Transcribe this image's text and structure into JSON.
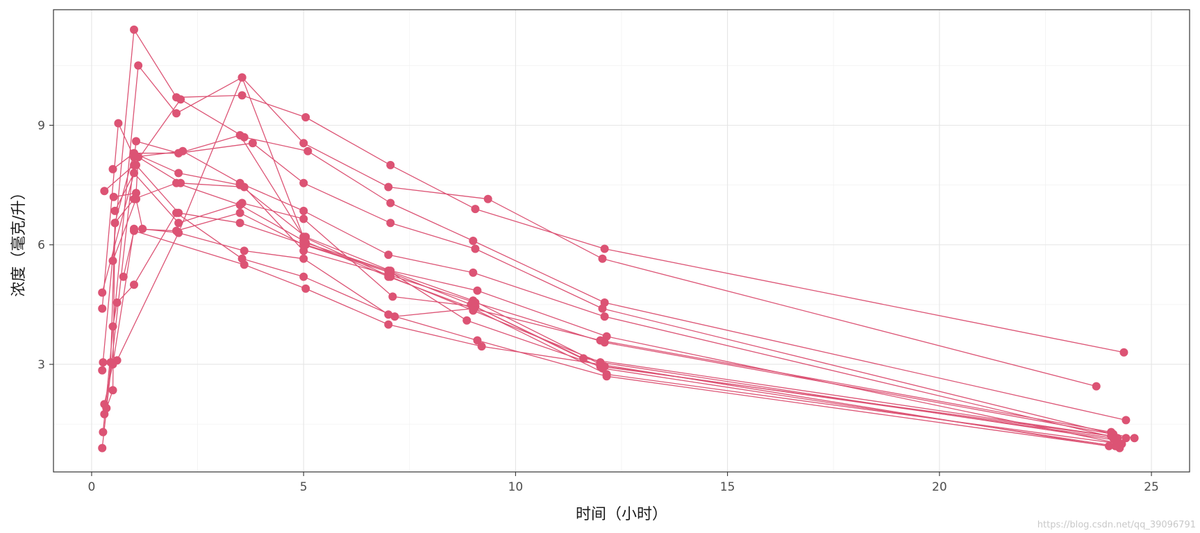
{
  "chart_data": {
    "type": "line",
    "xlabel": "时间（小时）",
    "ylabel": "浓度（毫克/升）",
    "xlim": [
      -0.9,
      25.9
    ],
    "ylim": [
      0.3,
      11.9
    ],
    "x_ticks": [
      0,
      5,
      10,
      15,
      20,
      25
    ],
    "y_ticks": [
      3,
      6,
      9
    ],
    "grid": true,
    "legend": "none",
    "series_color": "#dc5374",
    "series": [
      {
        "x": [
          0.25,
          1.0,
          2.0,
          3.55,
          5.05,
          7.05,
          9.05,
          12.1,
          24.35
        ],
        "y": [
          2.85,
          11.4,
          9.7,
          9.75,
          9.2,
          8.0,
          6.9,
          5.9,
          3.3
        ]
      },
      {
        "x": [
          0.27,
          1.1,
          2.0,
          3.55,
          5.0,
          7.0,
          9.35,
          12.05,
          23.7
        ],
        "y": [
          1.3,
          10.5,
          9.3,
          10.2,
          8.55,
          7.45,
          7.15,
          5.65,
          2.45
        ]
      },
      {
        "x": [
          0.3,
          1.0,
          2.1,
          3.6,
          5.1,
          7.05,
          9.0,
          12.1,
          24.4
        ],
        "y": [
          7.35,
          8.0,
          9.65,
          8.7,
          8.35,
          7.05,
          6.1,
          4.55,
          1.6
        ]
      },
      {
        "x": [
          0.25,
          1.05,
          2.05,
          3.8,
          5.0,
          7.05,
          9.05,
          12.05,
          24.1
        ],
        "y": [
          0.9,
          8.6,
          8.3,
          8.55,
          7.55,
          6.55,
          5.9,
          4.4,
          1.25
        ]
      },
      {
        "x": [
          0.25,
          0.63,
          1.0,
          2.15,
          3.5,
          5.0,
          7.0,
          9.0,
          12.1,
          24.2
        ],
        "y": [
          4.4,
          9.05,
          8.2,
          8.35,
          7.55,
          6.85,
          5.75,
          5.3,
          4.2,
          1.15
        ]
      },
      {
        "x": [
          0.5,
          1.0,
          2.05,
          3.5,
          5.05,
          7.05,
          9.1,
          12.15,
          24.3
        ],
        "y": [
          7.9,
          8.3,
          7.8,
          7.5,
          6.2,
          5.35,
          4.85,
          3.7,
          1.0
        ]
      },
      {
        "x": [
          0.52,
          1.05,
          1.1,
          2.1,
          3.6,
          5.0,
          7.0,
          9.05,
          12.1,
          24.6
        ],
        "y": [
          7.2,
          7.3,
          8.2,
          7.55,
          7.45,
          5.85,
          5.25,
          4.55,
          3.55,
          1.15
        ]
      },
      {
        "x": [
          0.25,
          1.05,
          2.05,
          3.5,
          5.05,
          7.0,
          8.85,
          12.0,
          24.05
        ],
        "y": [
          4.8,
          8.0,
          6.8,
          6.55,
          6.0,
          5.35,
          4.1,
          2.95,
          1.2
        ]
      },
      {
        "x": [
          0.55,
          1.0,
          2.05,
          3.55,
          5.0,
          7.1,
          9.05,
          11.6,
          24.4
        ],
        "y": [
          6.85,
          7.8,
          6.55,
          7.05,
          6.65,
          4.7,
          4.45,
          3.15,
          1.15
        ]
      },
      {
        "x": [
          0.5,
          1.05,
          1.2,
          2.05,
          3.6,
          5.0,
          7.0,
          9.1,
          12.15,
          24.0
        ],
        "y": [
          5.6,
          7.15,
          6.4,
          6.3,
          5.85,
          5.65,
          4.25,
          3.6,
          2.7,
          0.95
        ]
      },
      {
        "x": [
          0.75,
          1.0,
          3.6,
          5.05,
          7.0,
          9.2,
          12.0,
          24.25
        ],
        "y": [
          5.2,
          6.35,
          5.5,
          4.9,
          4.0,
          3.45,
          3.0,
          0.9
        ]
      },
      {
        "x": [
          0.5,
          0.6,
          1.0,
          2.0,
          3.55,
          5.0,
          7.15,
          9.0,
          12.15,
          24.3
        ],
        "y": [
          3.95,
          4.55,
          5.0,
          6.8,
          5.65,
          5.2,
          4.2,
          4.4,
          2.75,
          1.0
        ]
      },
      {
        "x": [
          0.27,
          0.6,
          2.05,
          3.55,
          5.05,
          7.0,
          9.0,
          12.1,
          24.1
        ],
        "y": [
          3.05,
          3.1,
          6.3,
          10.2,
          6.05,
          5.35,
          4.6,
          2.95,
          1.15
        ]
      },
      {
        "x": [
          0.3,
          0.5,
          1.0,
          2.0,
          3.5,
          5.0,
          7.05,
          8.95,
          12.05,
          24.15
        ],
        "y": [
          2.0,
          3.0,
          6.4,
          6.35,
          6.8,
          6.0,
          5.3,
          4.5,
          2.9,
          0.95
        ]
      },
      {
        "x": [
          0.3,
          0.5,
          0.55,
          1.0,
          2.0,
          3.5,
          5.0,
          7.0,
          9.0,
          12.0,
          24.05
        ],
        "y": [
          1.75,
          2.35,
          6.55,
          7.15,
          7.55,
          7.0,
          6.1,
          5.2,
          4.4,
          3.6,
          1.3
        ]
      },
      {
        "x": [
          0.35,
          0.45,
          0.55,
          1.0,
          2.05,
          3.5,
          5.0,
          7.05,
          9.0,
          12.0,
          24.15
        ],
        "y": [
          1.9,
          3.05,
          6.55,
          8.3,
          8.3,
          8.75,
          6.2,
          5.2,
          4.35,
          3.05,
          1.1
        ]
      }
    ]
  },
  "watermark": "https://blog.csdn.net/qq_39096791"
}
